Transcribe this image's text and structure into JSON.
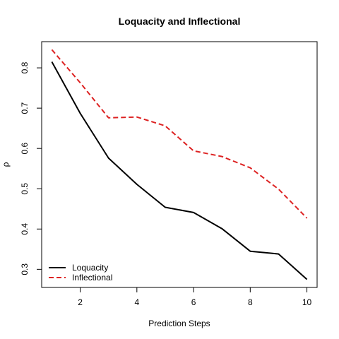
{
  "chart_data": {
    "type": "line",
    "title": "Loquacity and Inflectional",
    "xlabel": "Prediction Steps",
    "ylabel": "ρ",
    "xlim": [
      0.64,
      10.36
    ],
    "ylim": [
      0.255,
      0.865
    ],
    "x": [
      1,
      2,
      3,
      4,
      5,
      6,
      7,
      8,
      9,
      10
    ],
    "x_ticks": [
      2,
      4,
      6,
      8,
      10
    ],
    "y_ticks": [
      0.3,
      0.4,
      0.5,
      0.6,
      0.7,
      0.8
    ],
    "grid": false,
    "legend_position": "bottom-left",
    "series": [
      {
        "name": "Loquacity",
        "values": [
          0.815,
          0.687,
          0.576,
          0.511,
          0.454,
          0.441,
          0.401,
          0.345,
          0.338,
          0.275
        ],
        "color": "#000000",
        "dash": "solid"
      },
      {
        "name": "Inflectional",
        "values": [
          0.845,
          0.763,
          0.676,
          0.678,
          0.656,
          0.594,
          0.58,
          0.552,
          0.499,
          0.427
        ],
        "color": "#dd2222",
        "dash": "dashed"
      }
    ]
  }
}
